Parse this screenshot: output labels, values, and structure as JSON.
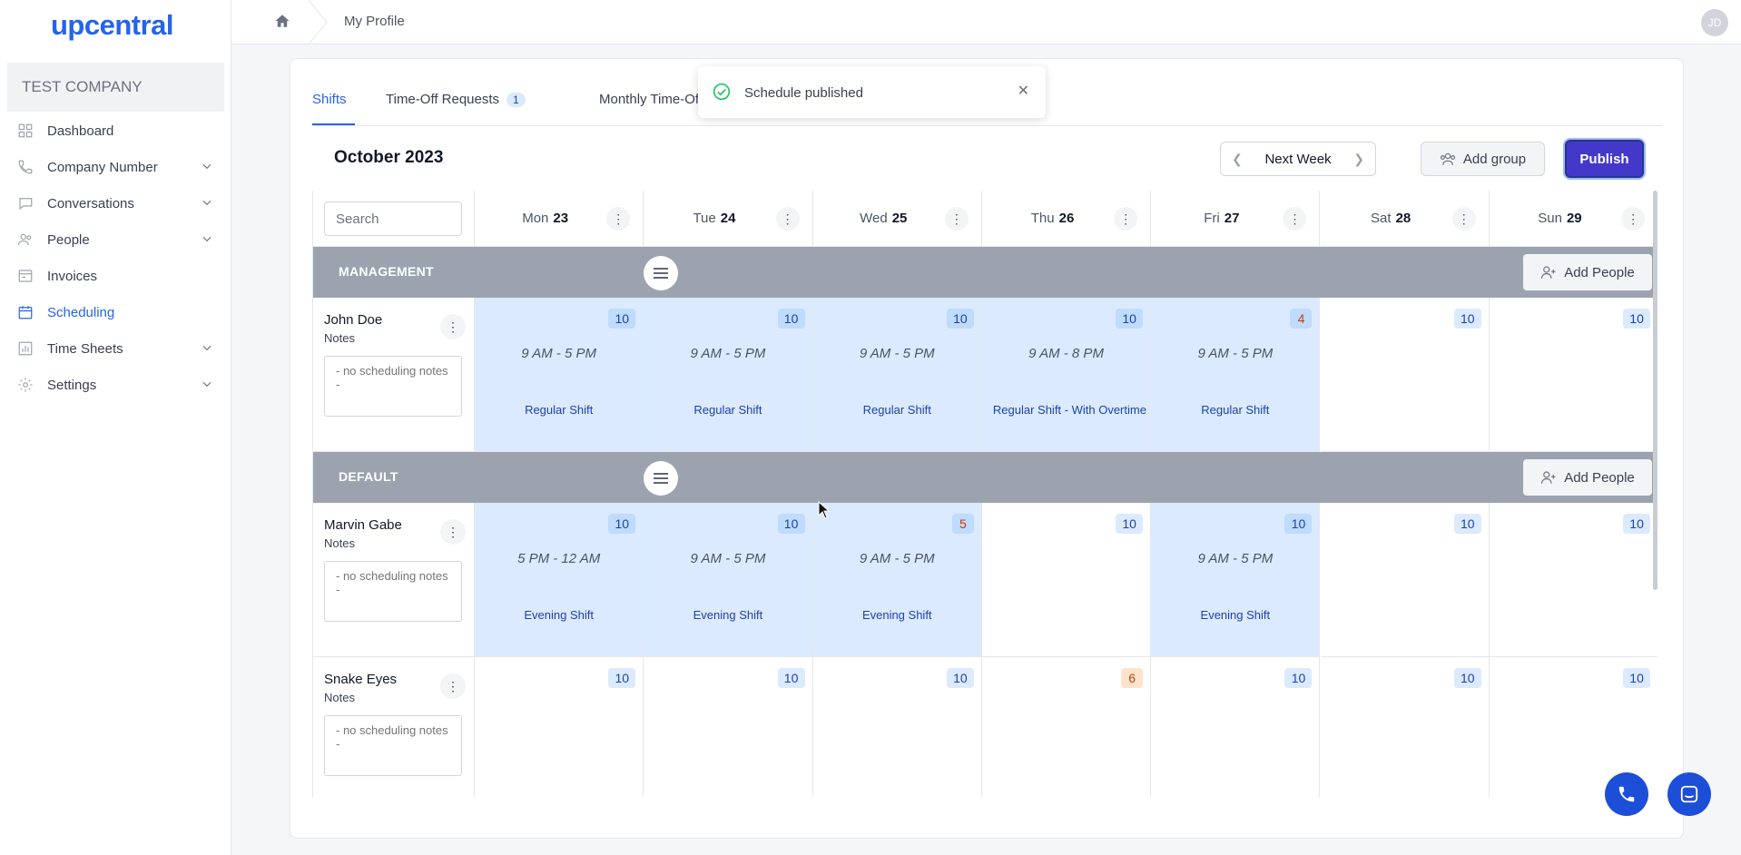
{
  "app": {
    "logo": "upcentral",
    "company": "TEST COMPANY",
    "avatar_initials": "JD"
  },
  "sidebar": {
    "items": [
      {
        "label": "Dashboard",
        "icon": "dashboard-icon",
        "expandable": false,
        "active": false
      },
      {
        "label": "Company Number",
        "icon": "phone-icon",
        "expandable": true,
        "active": false
      },
      {
        "label": "Conversations",
        "icon": "chat-icon",
        "expandable": true,
        "active": false
      },
      {
        "label": "People",
        "icon": "people-icon",
        "expandable": true,
        "active": false
      },
      {
        "label": "Invoices",
        "icon": "invoice-icon",
        "expandable": false,
        "active": false
      },
      {
        "label": "Scheduling",
        "icon": "calendar-icon",
        "expandable": false,
        "active": true
      },
      {
        "label": "Time Sheets",
        "icon": "chart-icon",
        "expandable": true,
        "active": false
      },
      {
        "label": "Settings",
        "icon": "gear-icon",
        "expandable": true,
        "active": false
      }
    ]
  },
  "header": {
    "breadcrumb": "My Profile"
  },
  "tabs": [
    {
      "label": "Shifts",
      "active": true
    },
    {
      "label": "Time-Off Requests",
      "count": "1"
    },
    {
      "label": "Monthly Time-Off V"
    }
  ],
  "toast": {
    "message": "Schedule published"
  },
  "toolbar": {
    "month": "October 2023",
    "week_label": "Next Week",
    "add_group": "Add group",
    "publish": "Publish"
  },
  "schedule": {
    "search_placeholder": "Search",
    "days": [
      {
        "dow": "Mon",
        "date": "23"
      },
      {
        "dow": "Tue",
        "date": "24"
      },
      {
        "dow": "Wed",
        "date": "25"
      },
      {
        "dow": "Thu",
        "date": "26"
      },
      {
        "dow": "Fri",
        "date": "27"
      },
      {
        "dow": "Sat",
        "date": "28"
      },
      {
        "dow": "Sun",
        "date": "29"
      }
    ],
    "add_people": "Add People",
    "notes_label": "Notes",
    "notes_placeholder": "- no scheduling notes -",
    "groups": [
      {
        "name": "MANAGEMENT",
        "people": [
          {
            "name": "John Doe",
            "cells": [
              {
                "count": "10",
                "time": "9 AM - 5 PM",
                "shift": "Regular Shift"
              },
              {
                "count": "10",
                "time": "9 AM - 5 PM",
                "shift": "Regular Shift"
              },
              {
                "count": "10",
                "time": "9 AM - 5 PM",
                "shift": "Regular Shift"
              },
              {
                "count": "10",
                "time": "9 AM - 8 PM",
                "shift": "Regular Shift - With Overtime"
              },
              {
                "count": "4",
                "warn": true,
                "time": "9 AM - 5 PM",
                "shift": "Regular Shift"
              },
              {
                "count": "10"
              },
              {
                "count": "10"
              }
            ]
          }
        ]
      },
      {
        "name": "DEFAULT",
        "people": [
          {
            "name": "Marvin Gabe",
            "cells": [
              {
                "count": "10",
                "time": "5 PM - 12 AM",
                "shift": "Evening Shift"
              },
              {
                "count": "10",
                "time": "9 AM - 5 PM",
                "shift": "Evening Shift"
              },
              {
                "count": "5",
                "warn": true,
                "time": "9 AM - 5 PM",
                "shift": "Evening Shift"
              },
              {
                "count": "10"
              },
              {
                "count": "10",
                "time": "9 AM - 5 PM",
                "shift": "Evening Shift"
              },
              {
                "count": "10"
              },
              {
                "count": "10"
              }
            ]
          },
          {
            "name": "Snake Eyes",
            "cells": [
              {
                "count": "10"
              },
              {
                "count": "10"
              },
              {
                "count": "10"
              },
              {
                "count": "6",
                "warn": true
              },
              {
                "count": "10"
              },
              {
                "count": "10"
              },
              {
                "count": "10"
              }
            ]
          }
        ]
      }
    ]
  },
  "colors": {
    "brand": "#2563eb",
    "publish": "#4338ca",
    "shift_fill": "#dbeafe",
    "group_band": "#9ca3af",
    "warn": "#c2410c",
    "success": "#22c55e"
  }
}
